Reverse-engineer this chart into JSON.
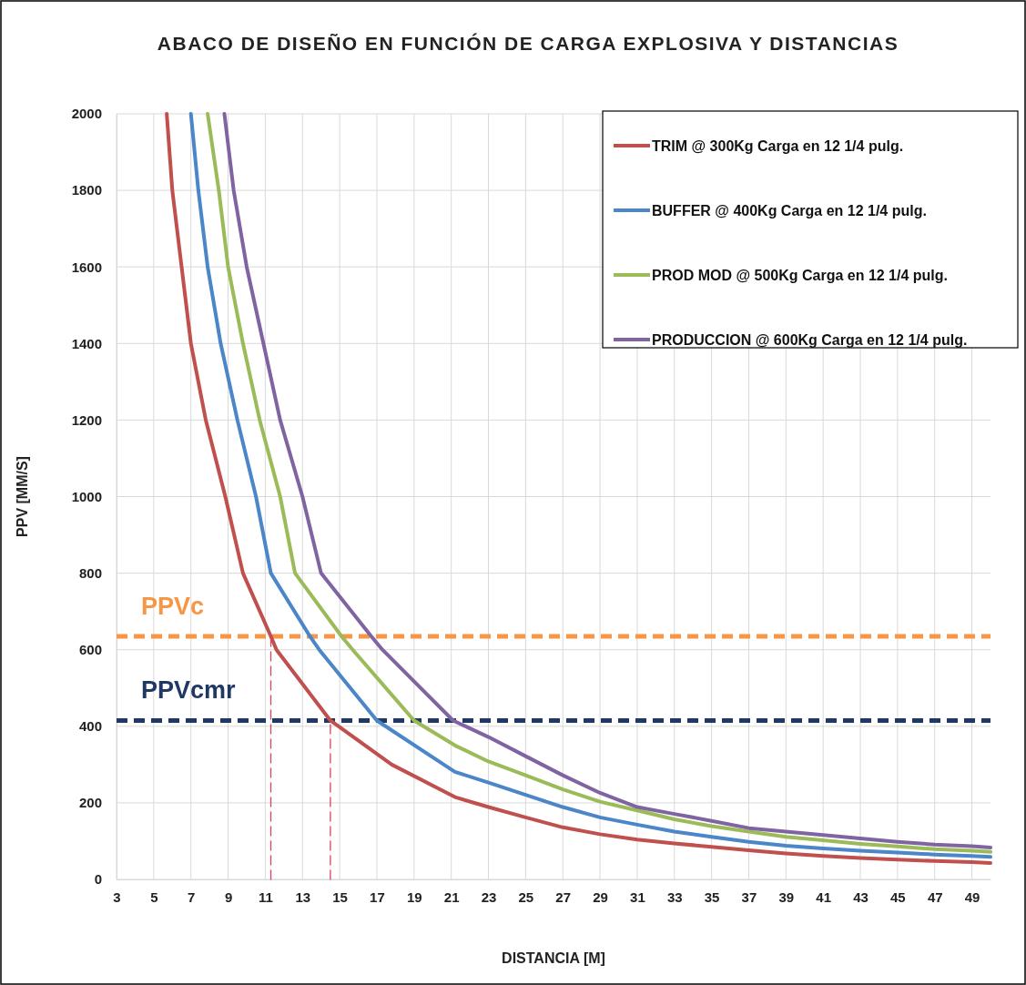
{
  "chart_data": {
    "type": "line",
    "title": "ABACO DE DISEÑO EN FUNCIÓN DE CARGA EXPLOSIVA Y DISTANCIAS",
    "xlabel": "DISTANCIA [M]",
    "ylabel": "PPV [MM/S]",
    "xlim": [
      3,
      50
    ],
    "xticks": [
      3,
      5,
      7,
      9,
      11,
      13,
      15,
      17,
      19,
      21,
      23,
      25,
      27,
      29,
      31,
      33,
      35,
      37,
      39,
      41,
      43,
      45,
      47,
      49
    ],
    "ylim": [
      0,
      2000
    ],
    "yticks": [
      0,
      200,
      400,
      600,
      800,
      1000,
      1200,
      1400,
      1600,
      1800,
      2000
    ],
    "grid": true,
    "legend": "top right",
    "line_style": "solid",
    "series": [
      {
        "name": "TRIM @ 300Kg Carga en 12 1/4 pulg.",
        "color": "#c0504d",
        "x": [
          5.7,
          6.0,
          6.5,
          7.0,
          7.8,
          8.85,
          9.8,
          11.3,
          11.6,
          14.5,
          17.8,
          21.2,
          23,
          25,
          27,
          29,
          31,
          33,
          35,
          37,
          39,
          41,
          43,
          45,
          47,
          49,
          50
        ],
        "values": [
          2000,
          1800,
          1600,
          1400,
          1200,
          1000,
          800,
          635,
          600,
          415,
          300,
          215,
          189,
          162,
          136,
          118,
          104,
          94,
          85,
          76,
          68,
          61,
          56,
          52,
          48,
          45,
          43
        ]
      },
      {
        "name": "BUFFER @ 400Kg Carga en 12 1/4 pulg.",
        "color": "#4a86c8",
        "x": [
          7.0,
          7.4,
          7.9,
          8.6,
          9.5,
          10.5,
          11.3,
          13.4,
          13.9,
          17.0,
          20.6,
          21.2,
          23,
          25,
          27,
          29,
          31,
          33,
          35,
          37,
          39,
          41,
          43,
          45,
          47,
          49,
          50
        ],
        "values": [
          2000,
          1800,
          1600,
          1400,
          1200,
          1000,
          800,
          635,
          600,
          415,
          300,
          281,
          253,
          221,
          189,
          162,
          143,
          125,
          111,
          98,
          88,
          81,
          75,
          70,
          65,
          61,
          59
        ]
      },
      {
        "name": "PROD MOD @ 500Kg Carga en 12 1/4 pulg.",
        "color": "#9bbb59",
        "x": [
          7.9,
          8.5,
          9.0,
          9.8,
          10.7,
          11.8,
          12.6,
          15.1,
          15.7,
          19.0,
          21.2,
          23,
          25,
          27,
          29,
          31,
          33,
          35,
          37,
          39,
          41,
          43,
          45,
          47,
          49,
          50
        ],
        "values": [
          2000,
          1800,
          1600,
          1400,
          1200,
          1000,
          800,
          635,
          600,
          415,
          350,
          308,
          272,
          235,
          203,
          180,
          157,
          139,
          125,
          111,
          102,
          93,
          86,
          79,
          75,
          72
        ]
      },
      {
        "name": "PRODUCCION @ 600Kg Carga en 12 1/4 pulg.",
        "color": "#8064a2",
        "x": [
          8.8,
          9.3,
          10.0,
          10.9,
          11.8,
          13.0,
          14.0,
          16.7,
          17.3,
          21.1,
          23,
          25,
          27,
          29,
          31,
          33,
          35,
          37,
          39,
          41,
          43,
          45,
          47,
          49,
          50
        ],
        "values": [
          2000,
          1800,
          1600,
          1400,
          1200,
          1000,
          800,
          635,
          600,
          415,
          372,
          322,
          272,
          226,
          189,
          171,
          153,
          134,
          125,
          116,
          107,
          98,
          91,
          87,
          83
        ]
      },
      {
        "color": "#e0405a",
        "line_style": "dashed",
        "x": [
          11.3,
          11.3
        ],
        "values": [
          0,
          635
        ]
      },
      {
        "color": "#e0405a",
        "line_style": "dashed",
        "x": [
          14.5,
          14.5
        ],
        "values": [
          0,
          415
        ]
      }
    ],
    "ref_lines": [
      {
        "axis": "y",
        "value": 635,
        "label": "PPVc",
        "color": "#f79646",
        "line_style": "dashed"
      },
      {
        "axis": "y",
        "value": 415,
        "label": "PPVcmr",
        "color": "#1f3864",
        "line_style": "dashed"
      }
    ]
  }
}
